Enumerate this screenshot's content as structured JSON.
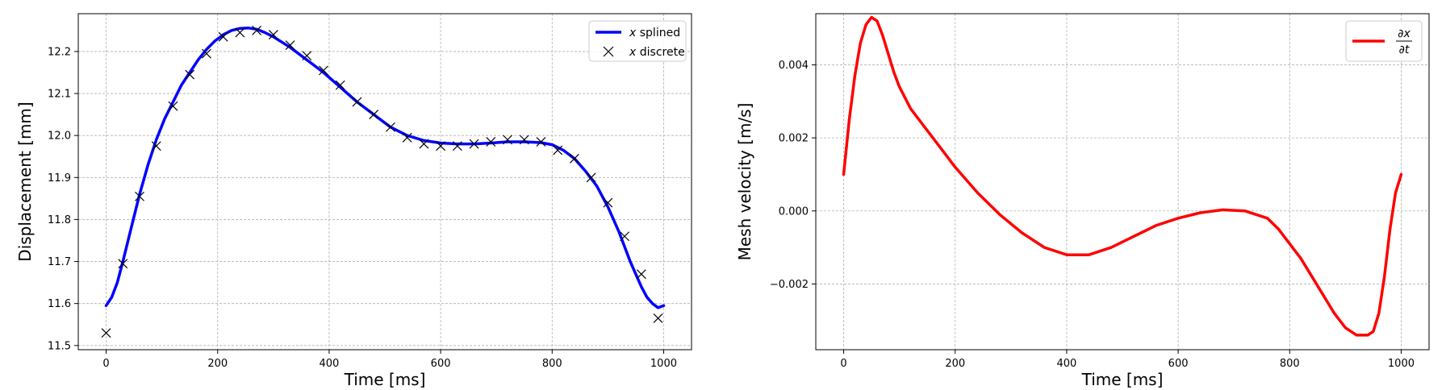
{
  "chart_data": [
    {
      "type": "line",
      "xlabel": "Time [ms]",
      "ylabel": "Displacement [mm]",
      "xlim": [
        -50,
        1050
      ],
      "ylim": [
        11.49,
        12.29
      ],
      "xticks": [
        0,
        200,
        400,
        600,
        800,
        1000
      ],
      "yticks": [
        11.5,
        11.6,
        11.7,
        11.8,
        11.9,
        12.0,
        12.1,
        12.2
      ],
      "ytick_decimals": 1,
      "grid": true,
      "legend_position": "top-right",
      "series": [
        {
          "name_symbol": "x",
          "name_text": " splined",
          "kind": "line",
          "color": "#0000ff",
          "x": [
            0,
            10,
            20,
            30,
            45,
            60,
            75,
            90,
            105,
            120,
            135,
            150,
            165,
            180,
            195,
            210,
            225,
            240,
            255,
            270,
            285,
            300,
            330,
            360,
            390,
            420,
            450,
            480,
            510,
            540,
            570,
            600,
            630,
            660,
            690,
            720,
            750,
            780,
            800,
            820,
            840,
            860,
            880,
            900,
            920,
            940,
            950,
            960,
            970,
            980,
            990,
            1000
          ],
          "y": [
            11.595,
            11.615,
            11.65,
            11.7,
            11.78,
            11.86,
            11.93,
            11.99,
            12.04,
            12.08,
            12.12,
            12.15,
            12.18,
            12.205,
            12.225,
            12.24,
            12.25,
            12.255,
            12.256,
            12.253,
            12.245,
            12.235,
            12.21,
            12.18,
            12.15,
            12.115,
            12.08,
            12.05,
            12.02,
            12.0,
            11.988,
            11.982,
            11.98,
            11.98,
            11.982,
            11.985,
            11.985,
            11.983,
            11.978,
            11.965,
            11.945,
            11.915,
            11.88,
            11.83,
            11.77,
            11.7,
            11.67,
            11.64,
            11.615,
            11.6,
            11.59,
            11.595
          ]
        },
        {
          "name_symbol": "x",
          "name_text": " discrete",
          "kind": "marker",
          "marker": "x",
          "color": "#000000",
          "x": [
            0,
            30,
            60,
            90,
            120,
            150,
            180,
            210,
            240,
            270,
            300,
            330,
            360,
            390,
            420,
            450,
            480,
            510,
            540,
            570,
            600,
            630,
            660,
            690,
            720,
            750,
            780,
            810,
            840,
            870,
            900,
            930,
            960,
            990
          ],
          "y": [
            11.53,
            11.695,
            11.855,
            11.975,
            12.07,
            12.145,
            12.195,
            12.235,
            12.245,
            12.25,
            12.24,
            12.215,
            12.19,
            12.155,
            12.12,
            12.08,
            12.05,
            12.02,
            11.995,
            11.98,
            11.975,
            11.975,
            11.98,
            11.985,
            11.99,
            11.99,
            11.985,
            11.965,
            11.945,
            11.9,
            11.84,
            11.76,
            11.67,
            11.565
          ]
        }
      ]
    },
    {
      "type": "line",
      "xlabel": "Time [ms]",
      "ylabel": "Mesh velocity [m/s]",
      "xlim": [
        -50,
        1050
      ],
      "ylim": [
        -0.0038,
        0.0054
      ],
      "xticks": [
        0,
        200,
        400,
        600,
        800,
        1000
      ],
      "yticks": [
        -0.002,
        0.0,
        0.002,
        0.004
      ],
      "ytick_decimals": 3,
      "grid": true,
      "legend_position": "top-right",
      "series": [
        {
          "name_numerator": "∂x",
          "name_denominator": "∂t",
          "kind": "line",
          "color": "#ff0000",
          "x": [
            0,
            10,
            20,
            30,
            40,
            50,
            60,
            70,
            80,
            90,
            100,
            120,
            140,
            160,
            180,
            200,
            240,
            280,
            320,
            360,
            400,
            440,
            480,
            520,
            560,
            600,
            640,
            680,
            720,
            760,
            780,
            800,
            820,
            840,
            860,
            880,
            900,
            920,
            940,
            950,
            960,
            970,
            980,
            990,
            1000
          ],
          "y": [
            0.001,
            0.0025,
            0.0037,
            0.0046,
            0.0051,
            0.0053,
            0.0052,
            0.0048,
            0.0043,
            0.0038,
            0.0034,
            0.0028,
            0.0024,
            0.002,
            0.0016,
            0.0012,
            0.0005,
            -0.0001,
            -0.0006,
            -0.001,
            -0.0012,
            -0.0012,
            -0.001,
            -0.0007,
            -0.0004,
            -0.0002,
            -5e-05,
            3e-05,
            0.0,
            -0.0002,
            -0.0005,
            -0.0009,
            -0.0013,
            -0.0018,
            -0.0023,
            -0.0028,
            -0.0032,
            -0.0034,
            -0.0034,
            -0.0033,
            -0.0028,
            -0.0018,
            -0.0005,
            0.0005,
            0.001
          ]
        }
      ]
    }
  ]
}
